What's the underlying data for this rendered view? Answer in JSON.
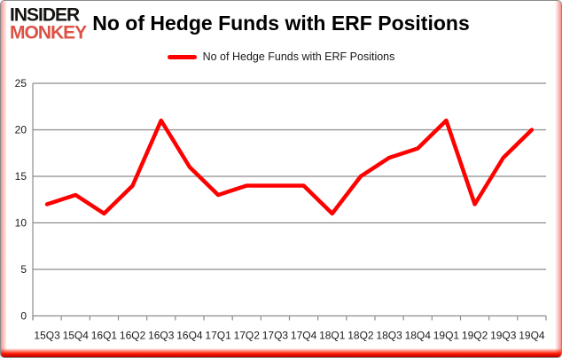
{
  "header": {
    "logo_line1": "INSIDER",
    "logo_line2": "MONKEY",
    "logo_color": "#dc5246",
    "title": "No of Hedge Funds with ERF Positions"
  },
  "legend": {
    "label": "No of Hedge Funds with ERF Positions",
    "swatch_color": "#ff0000"
  },
  "chart_data": {
    "type": "line",
    "title": "No of Hedge Funds with ERF Positions",
    "categories": [
      "15Q3",
      "15Q4",
      "16Q1",
      "16Q2",
      "16Q3",
      "16Q4",
      "17Q1",
      "17Q2",
      "17Q3",
      "17Q4",
      "18Q1",
      "18Q2",
      "18Q3",
      "18Q4",
      "19Q1",
      "19Q2",
      "19Q3",
      "19Q4"
    ],
    "series": [
      {
        "name": "No of Hedge Funds with ERF Positions",
        "values": [
          12,
          13,
          11,
          14,
          21,
          16,
          13,
          14,
          14,
          14,
          11,
          15,
          17,
          18,
          21,
          12,
          17,
          20
        ]
      }
    ],
    "xlabel": "",
    "ylabel": "",
    "ylim": [
      0,
      25
    ],
    "ytick_step": 5,
    "grid": true,
    "legend_position": "top-center",
    "line_color": "#ff0000",
    "grid_color": "#8c8c8c",
    "axis_label_color": "#1a1a1a"
  }
}
